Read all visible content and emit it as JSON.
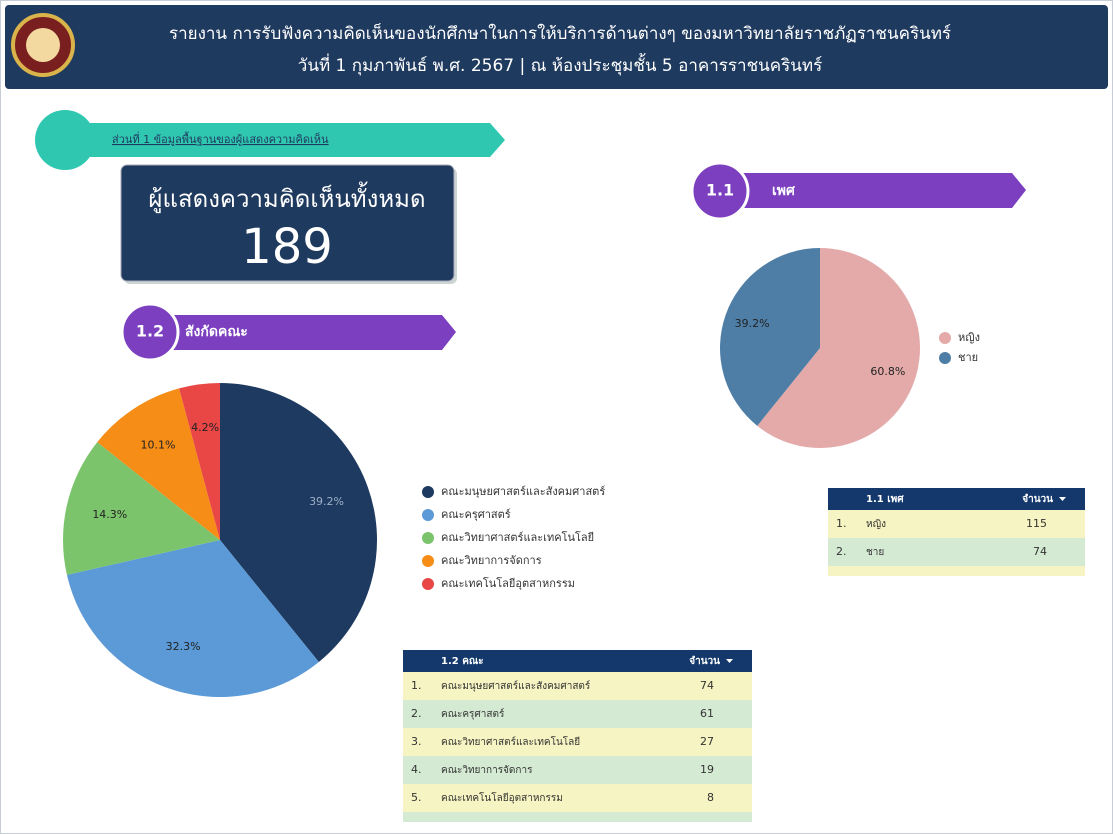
{
  "header": {
    "title": "รายงาน การรับฟังความคิดเห็นของนักศึกษาในการให้บริการด้านต่างๆ ของมหาวิทยาลัยราชภัฏราชนครินทร์",
    "subtitle": "วันที่ 1 กุมภาพันธ์ พ.ศ. 2567  |  ณ ห้องประชุมชั้น 5 อาคารราชนครินทร์"
  },
  "section": {
    "title": "ส่วนที่ 1 ข้อมูลพื้นฐานของผู้แสดงความคิดเห็น"
  },
  "scorecard": {
    "label": "ผู้แสดงความคิดเห็นทั้งหมด",
    "value": 189
  },
  "chart_data": [
    {
      "type": "pie",
      "number": "1.1",
      "title": "เพศ",
      "categories": [
        "หญิง",
        "ชาย"
      ],
      "values": [
        60.8,
        39.2
      ],
      "value_labels": [
        "60.8%",
        "39.2%"
      ],
      "colors": [
        "#e3aaa9",
        "#4e7ea6"
      ]
    },
    {
      "type": "pie",
      "number": "1.2",
      "title": "สังกัดคณะ",
      "categories": [
        "คณะมนุษยศาสตร์และสังคมศาสตร์",
        "คณะครุศาสตร์",
        "คณะวิทยาศาสตร์และเทคโนโลยี",
        "คณะวิทยาการจัดการ",
        "คณะเทคโนโลยีอุตสาหกรรม"
      ],
      "values": [
        39.2,
        32.3,
        14.3,
        10.1,
        4.2
      ],
      "value_labels": [
        "39.2%",
        "32.3%",
        "14.3%",
        "10.1%",
        "4.2%"
      ],
      "colors": [
        "#1e3a60",
        "#5b9ad6",
        "#7cc46c",
        "#f58d17",
        "#e94646"
      ]
    }
  ],
  "tables": [
    {
      "columns": [
        "1.1 เพศ",
        "จำนวน"
      ],
      "rows": [
        [
          "1.",
          "หญิง",
          115
        ],
        [
          "2.",
          "ชาย",
          74
        ]
      ]
    },
    {
      "columns": [
        "1.2 คณะ",
        "จำนวน"
      ],
      "rows": [
        [
          "1.",
          "คณะมนุษยศาสตร์และสังคมศาสตร์",
          74
        ],
        [
          "2.",
          "คณะครุศาสตร์",
          61
        ],
        [
          "3.",
          "คณะวิทยาศาสตร์และเทคโนโลยี",
          27
        ],
        [
          "4.",
          "คณะวิทยาการจัดการ",
          19
        ],
        [
          "5.",
          "คณะเทคโนโลยีอุตสาหกรรม",
          8
        ]
      ]
    }
  ]
}
